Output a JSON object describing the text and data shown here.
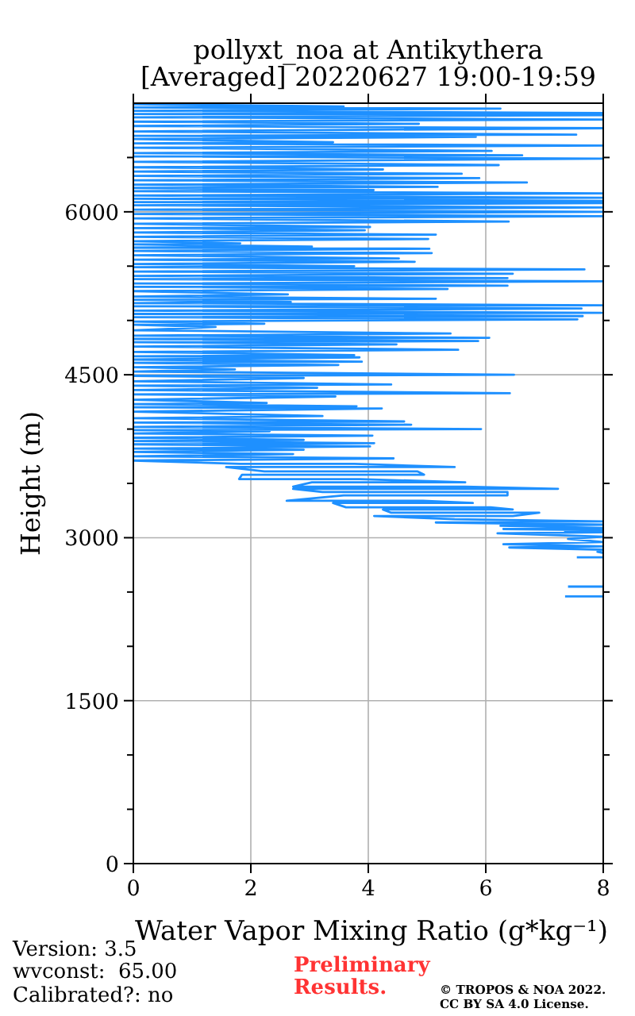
{
  "chart_data": {
    "type": "line",
    "title": "pollyxt_noa at Antikythera\n[Averaged] 20220627 19:00-19:59",
    "xlabel": "Water Vapor Mixing Ratio (g*kg⁻¹)",
    "ylabel": "Height (m)",
    "x": [
      7.35,
      8,
      null,
      7.4,
      8,
      null,
      7.55,
      8,
      null,
      8,
      7.9,
      8,
      6.4,
      8,
      6.3,
      8,
      7.4,
      8,
      6.2,
      8,
      7.35,
      8,
      6.3,
      8,
      6.25,
      8,
      5.15,
      8,
      5.47,
      4.1,
      6.46,
      6.91,
      4.39,
      4.25,
      6.46,
      6.08,
      3.62,
      3.4,
      5.78,
      4.93,
      2.61,
      3.58,
      6.37,
      6.37,
      3.22,
      2.72,
      7.23,
      5.65,
      2.72,
      3.04,
      5.65,
      3.85,
      1.8,
      1.85,
      4.95,
      4.84,
      2.23,
      1.58,
      5.47,
      3.76,
      1.82,
      0,
      4.43,
      0,
      2.72,
      0,
      2.9,
      0,
      4.03,
      0,
      4.1,
      0,
      2.9,
      0,
      4.07,
      0,
      2.32,
      0,
      5.92,
      0,
      4.73,
      0,
      4.61,
      0,
      3.22,
      0,
      4.23,
      0,
      3.8,
      0,
      2.27,
      0,
      3.44,
      0,
      6.41,
      0,
      3.13,
      0,
      4.39,
      0,
      2.9,
      0,
      6.48,
      0,
      1.73,
      0,
      3.49,
      0,
      3.89,
      0,
      3.85,
      0,
      3.76,
      0,
      5.53,
      0,
      4.48,
      0,
      5.87,
      0,
      6.06,
      0,
      5.4,
      0,
      1.4,
      0,
      2.23,
      0,
      7.56,
      0,
      7.65,
      0,
      7.97,
      0,
      7.63,
      0,
      8,
      0,
      2.68,
      0,
      5.15,
      0,
      2.63,
      0,
      5.35,
      0,
      6.37,
      0,
      8,
      0,
      6.37,
      0,
      6.46,
      0,
      7.68,
      0,
      3.76,
      0,
      4.79,
      0,
      4.52,
      0,
      5.08,
      0,
      5.04,
      0,
      3.04,
      0,
      1.82,
      0,
      5.02,
      0,
      5.15,
      0,
      3.94,
      0,
      4.03,
      0,
      6.39,
      0,
      8,
      0,
      8,
      0,
      8,
      0,
      8,
      0,
      8,
      0,
      8,
      0,
      8,
      0,
      4.09,
      0,
      5.18,
      0,
      6.7,
      0,
      5.89,
      0,
      5.59,
      0,
      4.25,
      0,
      6.22,
      0,
      8,
      0,
      6.62,
      0,
      6.1,
      0,
      8,
      0,
      3.4,
      0,
      5.83,
      0,
      7.54,
      0,
      8,
      0,
      4.86,
      0,
      8,
      0,
      8,
      0,
      8,
      0,
      6.25,
      0,
      3.58,
      0
    ],
    "values": [
      2460,
      2460,
      null,
      2550,
      2550,
      null,
      2820,
      2820,
      null,
      2860,
      2870,
      2890,
      2910,
      2920,
      2940,
      2960,
      2990,
      3010,
      3040,
      3050,
      3060,
      3070,
      3080,
      3090,
      3110,
      3120,
      3140,
      3150,
      3170,
      3200,
      3200,
      3230,
      3230,
      3260,
      3260,
      3280,
      3280,
      3320,
      3320,
      3340,
      3340,
      3390,
      3390,
      3420,
      3420,
      3450,
      3450,
      3470,
      3470,
      3510,
      3510,
      3540,
      3540,
      3580,
      3580,
      3610,
      3610,
      3650,
      3650,
      3680,
      3680,
      3710,
      3730,
      3750,
      3770,
      3790,
      3810,
      3820,
      3840,
      3860,
      3870,
      3890,
      3900,
      3920,
      3940,
      3960,
      3980,
      3990,
      4000,
      4020,
      4040,
      4060,
      4070,
      4100,
      4120,
      4160,
      4190,
      4200,
      4210,
      4230,
      4240,
      4270,
      4300,
      4320,
      4330,
      4360,
      4380,
      4400,
      4410,
      4440,
      4470,
      4490,
      4500,
      4530,
      4550,
      4570,
      4590,
      4610,
      4620,
      4640,
      4660,
      4670,
      4680,
      4710,
      4730,
      4760,
      4780,
      4800,
      4810,
      4830,
      4840,
      4860,
      4880,
      4910,
      4940,
      4960,
      4970,
      4990,
      5010,
      5030,
      5040,
      5060,
      5070,
      5090,
      5110,
      5130,
      5140,
      5160,
      5170,
      5190,
      5200,
      5220,
      5240,
      5270,
      5290,
      5310,
      5320,
      5340,
      5360,
      5380,
      5390,
      5410,
      5430,
      5450,
      5470,
      5490,
      5500,
      5520,
      5540,
      5560,
      5570,
      5600,
      5620,
      5640,
      5660,
      5670,
      5680,
      5700,
      5710,
      5730,
      5750,
      5770,
      5790,
      5810,
      5830,
      5850,
      5860,
      5890,
      5910,
      5940,
      5960,
      5980,
      6000,
      6020,
      6040,
      6060,
      6080,
      6090,
      6100,
      6120,
      6130,
      6150,
      6170,
      6190,
      6200,
      6220,
      6230,
      6250,
      6270,
      6290,
      6310,
      6330,
      6350,
      6370,
      6390,
      6410,
      6430,
      6460,
      6490,
      6510,
      6520,
      6540,
      6560,
      6590,
      6610,
      6630,
      6640,
      6670,
      6690,
      6700,
      6710,
      6740,
      6770,
      6790,
      6810,
      6830,
      6850,
      6870,
      6890,
      6900,
      6910,
      6930,
      6950,
      6960,
      6970,
      6990
    ],
    "color": "#1e90ff",
    "marker": "none",
    "line_style": "solid",
    "xlim": [
      0,
      8
    ],
    "xticks": [
      0,
      2,
      4,
      6,
      8
    ],
    "ylim": [
      0,
      7000
    ],
    "yticks": [
      0,
      {
        "value": 500,
        "label": null
      },
      {
        "value": 1000,
        "label": null
      },
      1500,
      {
        "value": 2000,
        "label": null
      },
      {
        "value": 2500,
        "label": null
      },
      3000,
      {
        "value": 3500,
        "label": null
      },
      {
        "value": 4000,
        "label": null
      },
      4500,
      {
        "value": 5000,
        "label": null
      },
      {
        "value": 5500,
        "label": null
      },
      6000,
      {
        "value": 6500,
        "label": null
      }
    ],
    "grid": true,
    "annotations": [
      "Version: 3.5",
      "wvconst:  65.00",
      "Calibrated?: no",
      "Preliminary\nResults.",
      "© TROPOS & NOA 2022.\nCC BY SA 4.0 License."
    ]
  }
}
